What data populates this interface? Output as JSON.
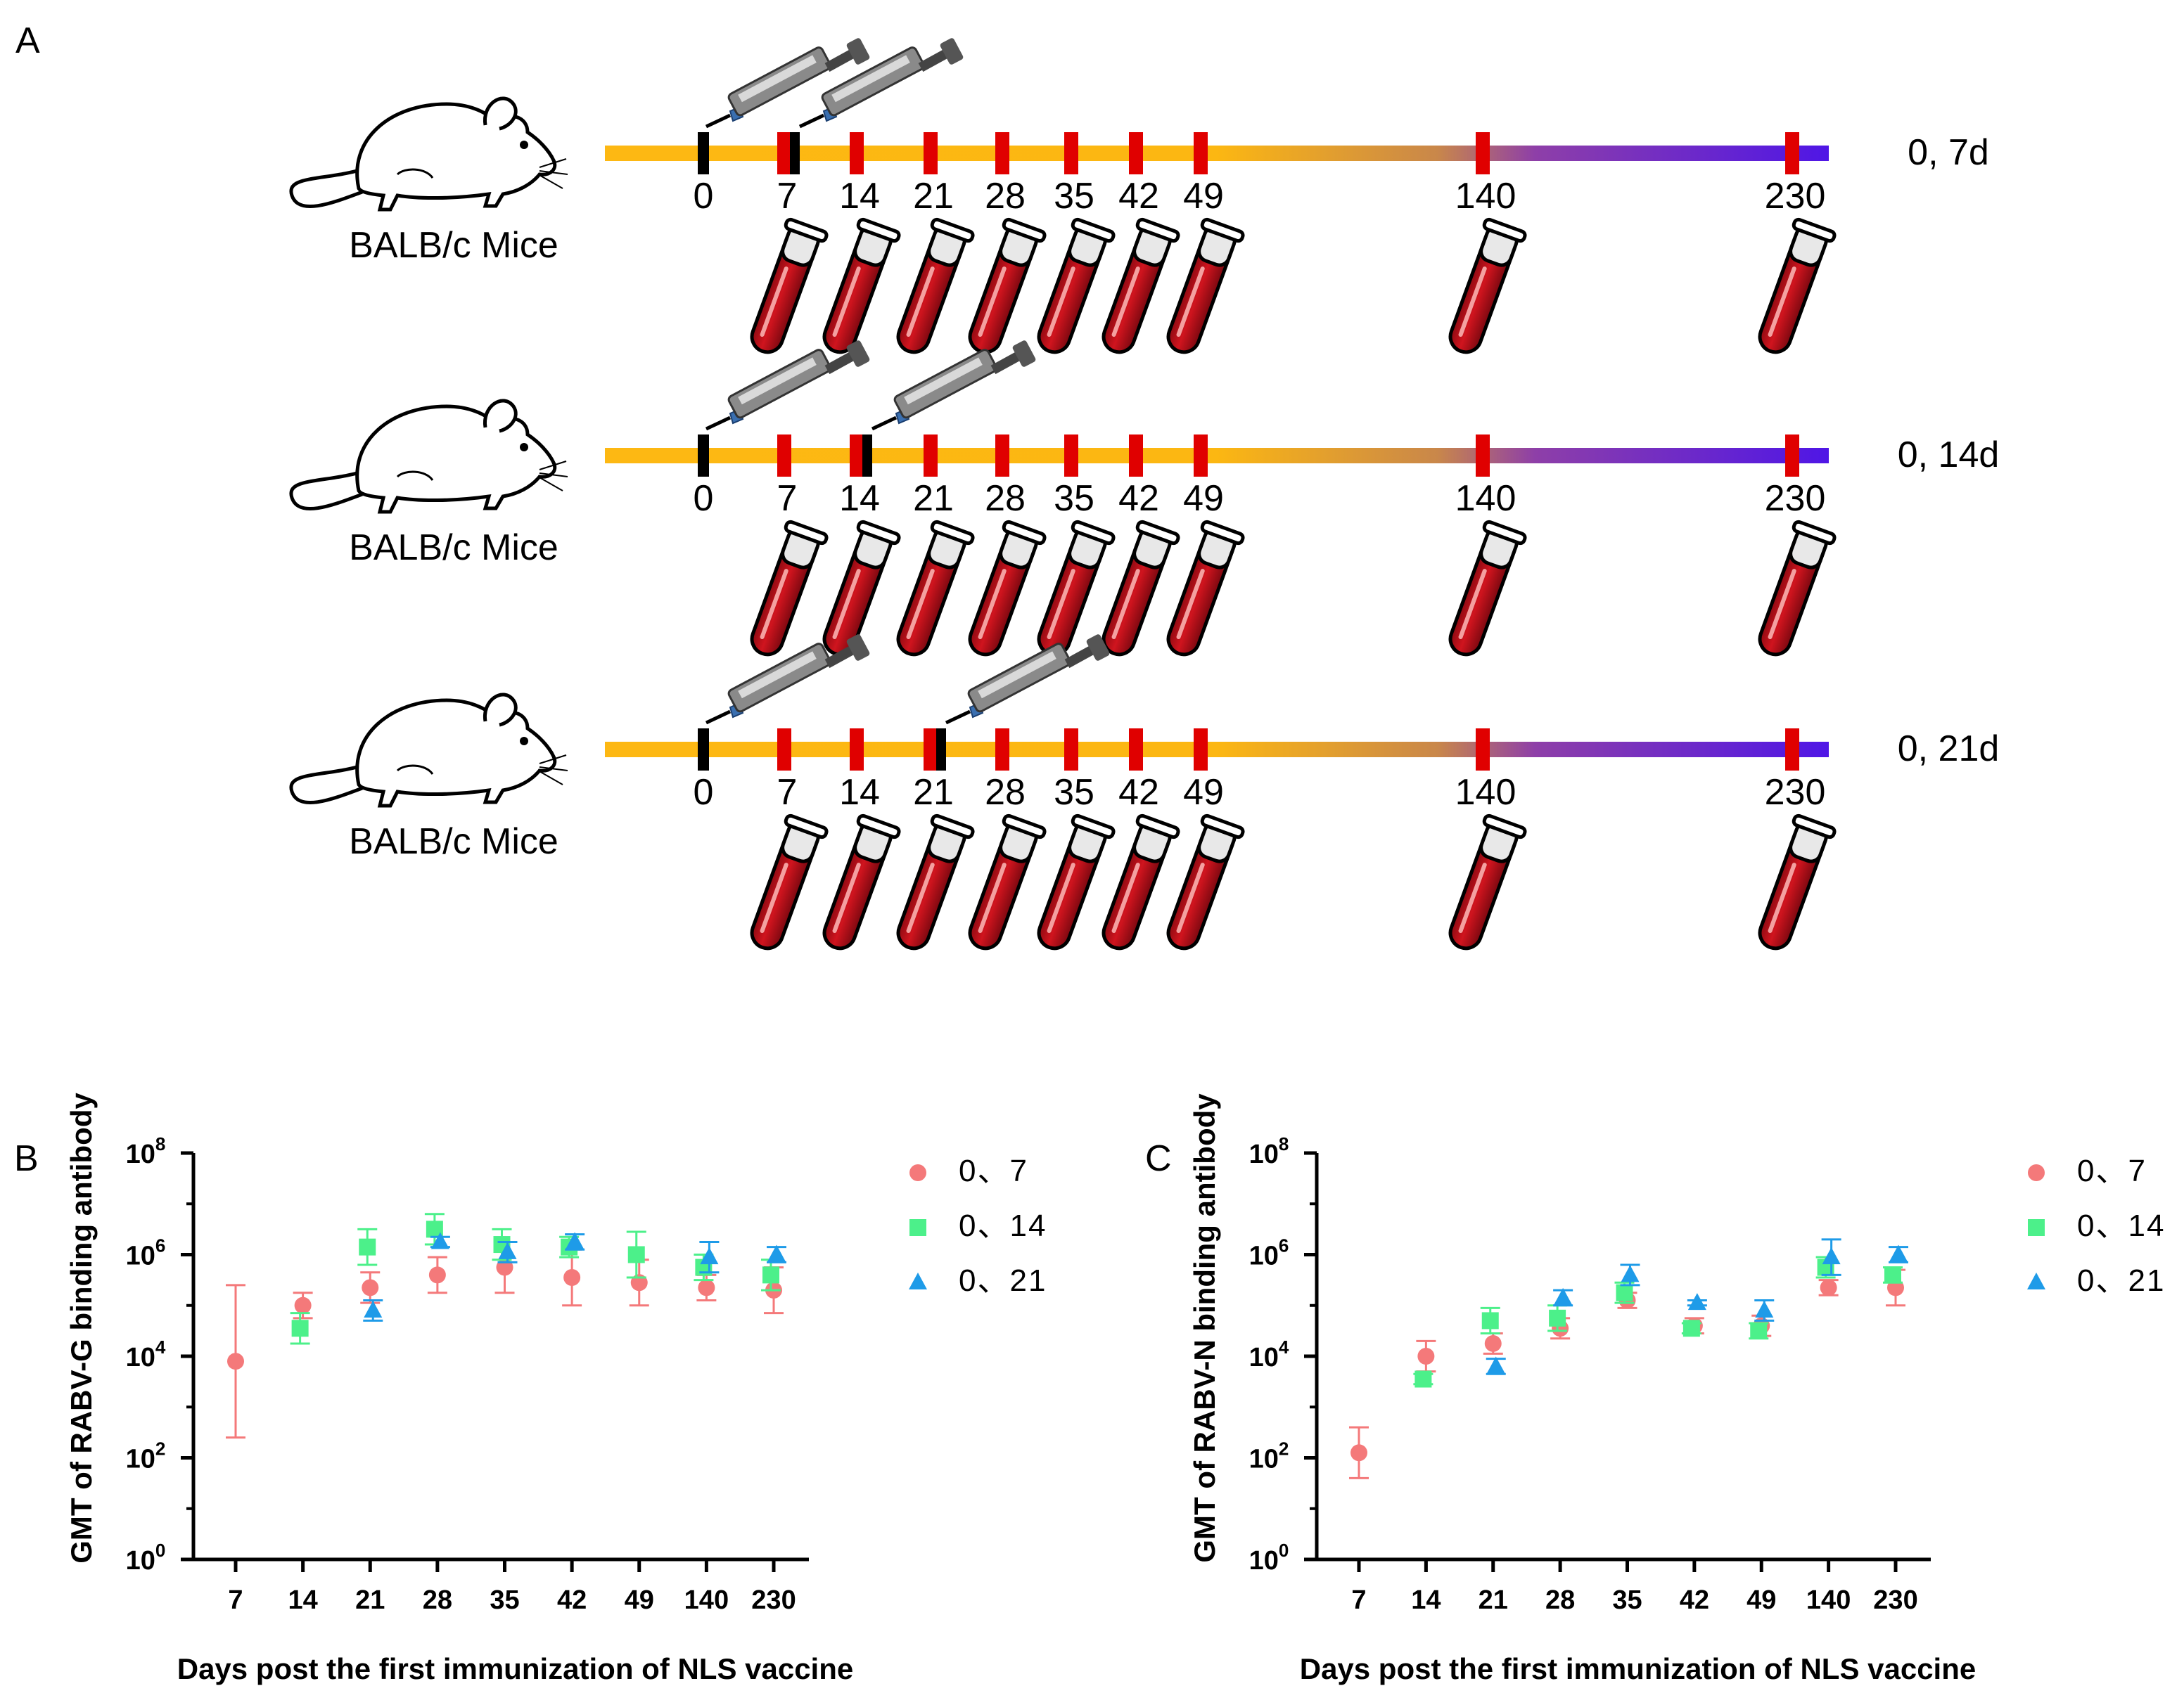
{
  "panelA": {
    "letter": "A",
    "mouse_icon": "mouse-icon",
    "syringe_icon": "syringe-icon",
    "tube_icon": "blood-tube-icon",
    "colors": {
      "bar_start": "#FDB813",
      "bar_mid": "#F39C12",
      "bar_end": "#5B19E0",
      "tick_red": "#E00000",
      "tick_black": "#000000",
      "blood": "#C0111A"
    },
    "timelines": [
      {
        "label": "0, 7d",
        "mice": "BALB/c Mice",
        "days": [
          "0",
          "7",
          "14",
          "21",
          "28",
          "35",
          "42",
          "49",
          "140",
          "230"
        ],
        "injections": [
          "0",
          "7"
        ]
      },
      {
        "label": "0, 14d",
        "mice": "BALB/c Mice",
        "days": [
          "0",
          "7",
          "14",
          "21",
          "28",
          "35",
          "42",
          "49",
          "140",
          "230"
        ],
        "injections": [
          "0",
          "14"
        ]
      },
      {
        "label": "0, 21d",
        "mice": "BALB/c Mice",
        "days": [
          "0",
          "7",
          "14",
          "21",
          "28",
          "35",
          "42",
          "49",
          "140",
          "230"
        ],
        "injections": [
          "0",
          "21"
        ]
      }
    ]
  },
  "chart_data": [
    {
      "panel": "B",
      "type": "scatter",
      "ylabel": "GMT of RABV-G binding antibody",
      "xlabel": "Days post the first immunization of NLS vaccine",
      "categories": [
        "7",
        "14",
        "21",
        "28",
        "35",
        "42",
        "49",
        "140",
        "230"
      ],
      "yscale": "log10",
      "ylim_exp": [
        0,
        8
      ],
      "yticks": [
        {
          "base": "10",
          "exp": "0"
        },
        {
          "base": "10",
          "exp": "2"
        },
        {
          "base": "10",
          "exp": "4"
        },
        {
          "base": "10",
          "exp": "6"
        },
        {
          "base": "10",
          "exp": "8"
        }
      ],
      "series": [
        {
          "name": "0、7",
          "color": "#F4797A",
          "marker": "circle",
          "log_values": [
            3.9,
            5.0,
            5.35,
            5.6,
            5.75,
            5.55,
            5.45,
            5.35,
            5.3
          ],
          "log_err": [
            1.5,
            0.25,
            0.3,
            0.35,
            0.5,
            0.55,
            0.45,
            0.25,
            0.45
          ]
        },
        {
          "name": "0、14",
          "color": "#4CF08A",
          "marker": "square",
          "log_values": [
            null,
            4.55,
            6.15,
            6.5,
            6.2,
            6.15,
            6.0,
            5.75,
            5.6
          ],
          "log_err": [
            null,
            0.3,
            0.35,
            0.3,
            0.3,
            0.2,
            0.45,
            0.25,
            0.3
          ]
        },
        {
          "name": "0、21",
          "color": "#1E9BE8",
          "marker": "triangle",
          "log_values": [
            null,
            null,
            4.9,
            6.25,
            6.05,
            6.25,
            null,
            5.95,
            6.0
          ],
          "log_err": [
            null,
            null,
            0.2,
            0.1,
            0.2,
            0.15,
            null,
            0.3,
            0.15
          ]
        }
      ],
      "legend": "right"
    },
    {
      "panel": "C",
      "type": "scatter",
      "ylabel": "GMT of RABV-N binding antibody",
      "xlabel": "Days post the first immunization of NLS vaccine",
      "categories": [
        "7",
        "14",
        "21",
        "28",
        "35",
        "42",
        "49",
        "140",
        "230"
      ],
      "yscale": "log10",
      "ylim_exp": [
        0,
        8
      ],
      "yticks": [
        {
          "base": "10",
          "exp": "0"
        },
        {
          "base": "10",
          "exp": "2"
        },
        {
          "base": "10",
          "exp": "4"
        },
        {
          "base": "10",
          "exp": "6"
        },
        {
          "base": "10",
          "exp": "8"
        }
      ],
      "series": [
        {
          "name": "0、7",
          "color": "#F4797A",
          "marker": "circle",
          "log_values": [
            2.1,
            4.0,
            4.25,
            4.55,
            5.1,
            4.6,
            4.6,
            5.35,
            5.35
          ],
          "log_err": [
            0.5,
            0.3,
            0.2,
            0.2,
            0.15,
            0.15,
            0.2,
            0.15,
            0.35
          ]
        },
        {
          "name": "0、14",
          "color": "#4CF08A",
          "marker": "square",
          "log_values": [
            null,
            3.55,
            4.7,
            4.75,
            5.25,
            4.55,
            4.5,
            5.75,
            5.6
          ],
          "log_err": [
            null,
            0.1,
            0.25,
            0.25,
            0.2,
            0.1,
            0.15,
            0.2,
            0.15
          ]
        },
        {
          "name": "0、21",
          "color": "#1E9BE8",
          "marker": "triangle",
          "log_values": [
            null,
            null,
            3.8,
            5.15,
            5.6,
            5.05,
            4.9,
            5.95,
            6.0
          ],
          "log_err": [
            null,
            null,
            0.15,
            0.15,
            0.2,
            0.05,
            0.2,
            0.35,
            0.15
          ]
        }
      ],
      "legend": "right"
    }
  ]
}
